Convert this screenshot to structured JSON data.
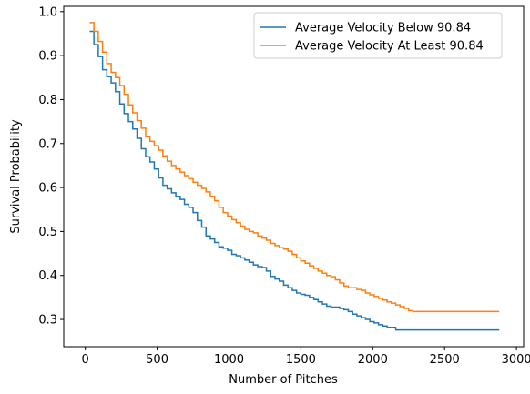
{
  "chart_data": {
    "type": "line",
    "step": true,
    "xlabel": "Number of Pitches",
    "ylabel": "Survival Probability",
    "xlim": [
      -150,
      3050
    ],
    "ylim": [
      0.238,
      1.012
    ],
    "xticks": [
      0,
      500,
      1000,
      1500,
      2000,
      2500,
      3000
    ],
    "yticks": [
      0.3,
      0.4,
      0.5,
      0.6,
      0.7,
      0.8,
      0.9,
      1.0
    ],
    "xtick_labels": [
      "0",
      "500",
      "1000",
      "1500",
      "2000",
      "2500",
      "3000"
    ],
    "ytick_labels": [
      "0.3",
      "0.4",
      "0.5",
      "0.6",
      "0.7",
      "0.8",
      "0.9",
      "1.0"
    ],
    "grid": false,
    "legend_position": "top-right",
    "series": [
      {
        "name": "Average Velocity Below 90.84",
        "color": "#1f77b4",
        "x": [
          30,
          60,
          90,
          120,
          150,
          180,
          210,
          240,
          270,
          300,
          330,
          360,
          390,
          420,
          450,
          480,
          510,
          540,
          570,
          600,
          630,
          660,
          690,
          720,
          750,
          780,
          810,
          840,
          870,
          900,
          930,
          960,
          990,
          1020,
          1050,
          1080,
          1110,
          1140,
          1170,
          1200,
          1230,
          1260,
          1290,
          1320,
          1350,
          1380,
          1410,
          1440,
          1470,
          1500,
          1530,
          1560,
          1590,
          1620,
          1650,
          1680,
          1710,
          1740,
          1770,
          1800,
          1830,
          1860,
          1890,
          1920,
          1950,
          1980,
          2010,
          2040,
          2070,
          2100,
          2130,
          2160,
          2190,
          2220,
          2250,
          2280,
          2310,
          2880
        ],
        "y": [
          0.955,
          0.925,
          0.898,
          0.868,
          0.852,
          0.838,
          0.818,
          0.79,
          0.768,
          0.75,
          0.733,
          0.712,
          0.688,
          0.67,
          0.658,
          0.642,
          0.622,
          0.605,
          0.597,
          0.588,
          0.58,
          0.573,
          0.562,
          0.555,
          0.543,
          0.525,
          0.51,
          0.49,
          0.483,
          0.475,
          0.465,
          0.462,
          0.457,
          0.448,
          0.445,
          0.44,
          0.435,
          0.43,
          0.424,
          0.42,
          0.418,
          0.41,
          0.398,
          0.392,
          0.387,
          0.378,
          0.372,
          0.366,
          0.36,
          0.357,
          0.355,
          0.35,
          0.345,
          0.34,
          0.335,
          0.33,
          0.328,
          0.328,
          0.325,
          0.322,
          0.318,
          0.312,
          0.308,
          0.304,
          0.3,
          0.295,
          0.292,
          0.288,
          0.285,
          0.282,
          0.282,
          0.276,
          0.276,
          0.276,
          0.276,
          0.276,
          0.276,
          0.276
        ]
      },
      {
        "name": "Average Velocity At Least 90.84",
        "color": "#ff7f0e",
        "x": [
          30,
          60,
          90,
          120,
          150,
          180,
          210,
          240,
          270,
          300,
          330,
          360,
          390,
          420,
          450,
          480,
          510,
          540,
          570,
          600,
          630,
          660,
          690,
          720,
          750,
          780,
          810,
          840,
          870,
          900,
          930,
          960,
          990,
          1020,
          1050,
          1080,
          1110,
          1140,
          1170,
          1200,
          1230,
          1260,
          1290,
          1320,
          1350,
          1380,
          1410,
          1440,
          1470,
          1500,
          1530,
          1560,
          1590,
          1620,
          1650,
          1680,
          1710,
          1740,
          1770,
          1800,
          1830,
          1860,
          1890,
          1920,
          1950,
          1980,
          2010,
          2040,
          2070,
          2100,
          2130,
          2160,
          2190,
          2220,
          2250,
          2280,
          2310,
          2880
        ],
        "y": [
          0.975,
          0.955,
          0.932,
          0.908,
          0.882,
          0.862,
          0.85,
          0.832,
          0.812,
          0.788,
          0.77,
          0.752,
          0.735,
          0.715,
          0.705,
          0.695,
          0.685,
          0.672,
          0.66,
          0.65,
          0.642,
          0.635,
          0.627,
          0.62,
          0.612,
          0.605,
          0.598,
          0.59,
          0.58,
          0.57,
          0.555,
          0.543,
          0.535,
          0.527,
          0.52,
          0.512,
          0.505,
          0.5,
          0.497,
          0.49,
          0.485,
          0.48,
          0.473,
          0.468,
          0.463,
          0.46,
          0.455,
          0.448,
          0.44,
          0.433,
          0.428,
          0.422,
          0.416,
          0.41,
          0.405,
          0.4,
          0.397,
          0.39,
          0.383,
          0.376,
          0.372,
          0.372,
          0.368,
          0.366,
          0.36,
          0.356,
          0.352,
          0.348,
          0.344,
          0.34,
          0.337,
          0.333,
          0.329,
          0.325,
          0.32,
          0.318,
          0.318,
          0.318
        ]
      }
    ]
  }
}
